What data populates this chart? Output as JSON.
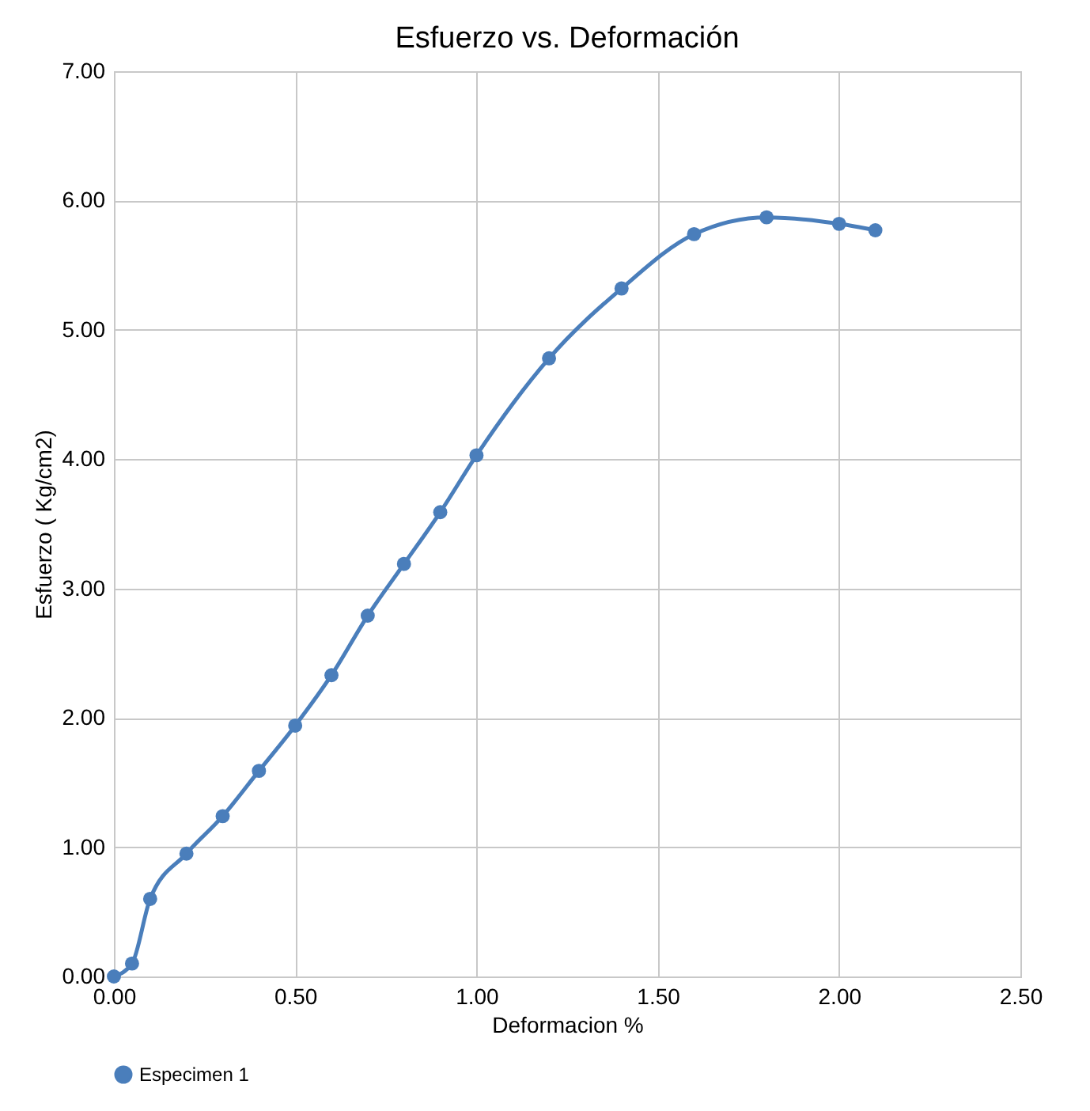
{
  "chart_data": {
    "type": "line",
    "title": "Esfuerzo vs. Deformación",
    "xlabel": "Deformacion %",
    "ylabel": "Esfuerzo ( Kg/cm2)",
    "x": [
      0,
      0.05,
      0.1,
      0.2,
      0.3,
      0.4,
      0.5,
      0.6,
      0.7,
      0.8,
      0.9,
      1.0,
      1.2,
      1.4,
      1.6,
      1.8,
      2.0,
      2.1
    ],
    "series": [
      {
        "name": "Especimen 1",
        "color": "#4a7ebb",
        "values": [
          0,
          0.1,
          0.6,
          0.95,
          1.24,
          1.59,
          1.94,
          2.33,
          2.79,
          3.19,
          3.59,
          4.03,
          4.78,
          5.32,
          5.74,
          5.87,
          5.82,
          5.77
        ]
      }
    ],
    "xlim": [
      0,
      2.5
    ],
    "xticks": [
      {
        "value": 0,
        "label": "0.00"
      },
      {
        "value": 0.5,
        "label": "0.50"
      },
      {
        "value": 1,
        "label": "1.00"
      },
      {
        "value": 1.5,
        "label": "1.50"
      },
      {
        "value": 2,
        "label": "2.00"
      },
      {
        "value": 2.5,
        "label": "2.50"
      }
    ],
    "ylim": [
      0,
      7
    ],
    "yticks": [
      {
        "value": 0,
        "label": "0.00"
      },
      {
        "value": 1,
        "label": "1.00"
      },
      {
        "value": 2,
        "label": "2.00"
      },
      {
        "value": 3,
        "label": "3.00"
      },
      {
        "value": 4,
        "label": "4.00"
      },
      {
        "value": 5,
        "label": "5.00"
      },
      {
        "value": 6,
        "label": "6.00"
      },
      {
        "value": 7,
        "label": "7.00"
      }
    ],
    "grid": true,
    "legend": "bottom",
    "marker": "circle",
    "line_style": "solid"
  }
}
